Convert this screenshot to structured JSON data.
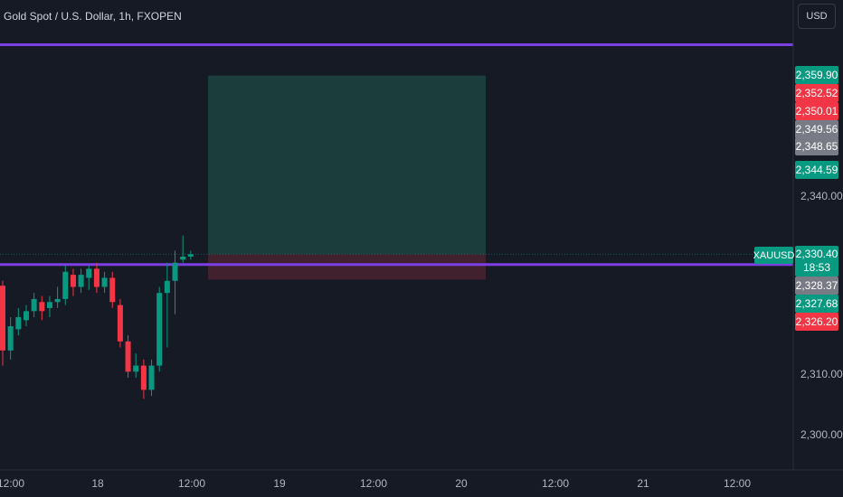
{
  "header": {
    "title": "Gold Spot / U.S. Dollar, 1h, FXOPEN",
    "currency": "USD"
  },
  "colors": {
    "background": "#161a25",
    "up": "#089981",
    "down": "#f23645",
    "hline": "#7b3fe4",
    "target_zone": "#1d4a44",
    "stop_zone": "#4a2330"
  },
  "price_axis": {
    "ticks": [
      "2,340.00",
      "2,310.00",
      "2,300.00"
    ]
  },
  "price_tags": [
    {
      "label": "2,359.90",
      "color": "green"
    },
    {
      "label": "2,352.52",
      "color": "red"
    },
    {
      "label": "2,350.01",
      "color": "red"
    },
    {
      "label": "2,349.56",
      "color": "gray"
    },
    {
      "label": "2,348.65",
      "color": "gray"
    },
    {
      "label": "2,344.59",
      "color": "green"
    },
    {
      "label": "2,328.37",
      "color": "gray"
    },
    {
      "label": "2,327.68",
      "color": "green"
    },
    {
      "label": "2,326.20",
      "color": "red"
    }
  ],
  "last_price": {
    "symbol": "XAUUSD",
    "price": "2,330.40",
    "countdown": "18:53"
  },
  "time_axis": [
    "12:00",
    "18",
    "12:00",
    "19",
    "12:00",
    "20",
    "12:00",
    "21",
    "12:00"
  ],
  "chart_data": {
    "type": "candlestick",
    "title": "Gold Spot / U.S. Dollar, 1h, FXOPEN",
    "y_axis_ticks": [
      2340,
      2310,
      2300
    ],
    "horizontal_lines": [
      2365.0,
      2328.7
    ],
    "position_tool": {
      "entry": 2330.4,
      "target": 2359.9,
      "stop": 2326.2
    },
    "candles": [
      {
        "o": 2325.2,
        "h": 2326.0,
        "l": 2312.0,
        "c": 2314.5
      },
      {
        "o": 2314.5,
        "h": 2320.0,
        "l": 2313.0,
        "c": 2318.5
      },
      {
        "o": 2318.0,
        "h": 2321.5,
        "l": 2317.0,
        "c": 2320.0
      },
      {
        "o": 2319.5,
        "h": 2322.0,
        "l": 2318.5,
        "c": 2321.0
      },
      {
        "o": 2321.0,
        "h": 2324.0,
        "l": 2320.0,
        "c": 2323.0
      },
      {
        "o": 2322.5,
        "h": 2323.5,
        "l": 2319.5,
        "c": 2321.0
      },
      {
        "o": 2321.5,
        "h": 2323.5,
        "l": 2320.0,
        "c": 2322.5
      },
      {
        "o": 2322.5,
        "h": 2325.0,
        "l": 2321.5,
        "c": 2323.0
      },
      {
        "o": 2323.0,
        "h": 2328.5,
        "l": 2322.0,
        "c": 2327.5
      },
      {
        "o": 2327.0,
        "h": 2328.0,
        "l": 2323.5,
        "c": 2325.0
      },
      {
        "o": 2325.0,
        "h": 2328.0,
        "l": 2324.0,
        "c": 2327.0
      },
      {
        "o": 2326.5,
        "h": 2328.5,
        "l": 2324.5,
        "c": 2328.0
      },
      {
        "o": 2328.0,
        "h": 2329.0,
        "l": 2324.0,
        "c": 2325.0
      },
      {
        "o": 2325.0,
        "h": 2327.5,
        "l": 2324.0,
        "c": 2326.5
      },
      {
        "o": 2326.5,
        "h": 2327.5,
        "l": 2321.5,
        "c": 2322.5
      },
      {
        "o": 2322.0,
        "h": 2323.0,
        "l": 2315.0,
        "c": 2316.0
      },
      {
        "o": 2316.0,
        "h": 2317.0,
        "l": 2310.0,
        "c": 2311.0
      },
      {
        "o": 2311.0,
        "h": 2314.0,
        "l": 2310.0,
        "c": 2312.0
      },
      {
        "o": 2312.0,
        "h": 2313.0,
        "l": 2306.5,
        "c": 2308.0
      },
      {
        "o": 2308.0,
        "h": 2313.0,
        "l": 2307.0,
        "c": 2312.0
      },
      {
        "o": 2312.0,
        "h": 2325.0,
        "l": 2311.0,
        "c": 2324.0
      },
      {
        "o": 2324.0,
        "h": 2329.0,
        "l": 2315.0,
        "c": 2326.0
      },
      {
        "o": 2326.0,
        "h": 2331.0,
        "l": 2320.5,
        "c": 2329.0
      },
      {
        "o": 2329.5,
        "h": 2333.5,
        "l": 2329.0,
        "c": 2330.0
      },
      {
        "o": 2330.0,
        "h": 2331.0,
        "l": 2329.5,
        "c": 2330.4
      }
    ]
  }
}
